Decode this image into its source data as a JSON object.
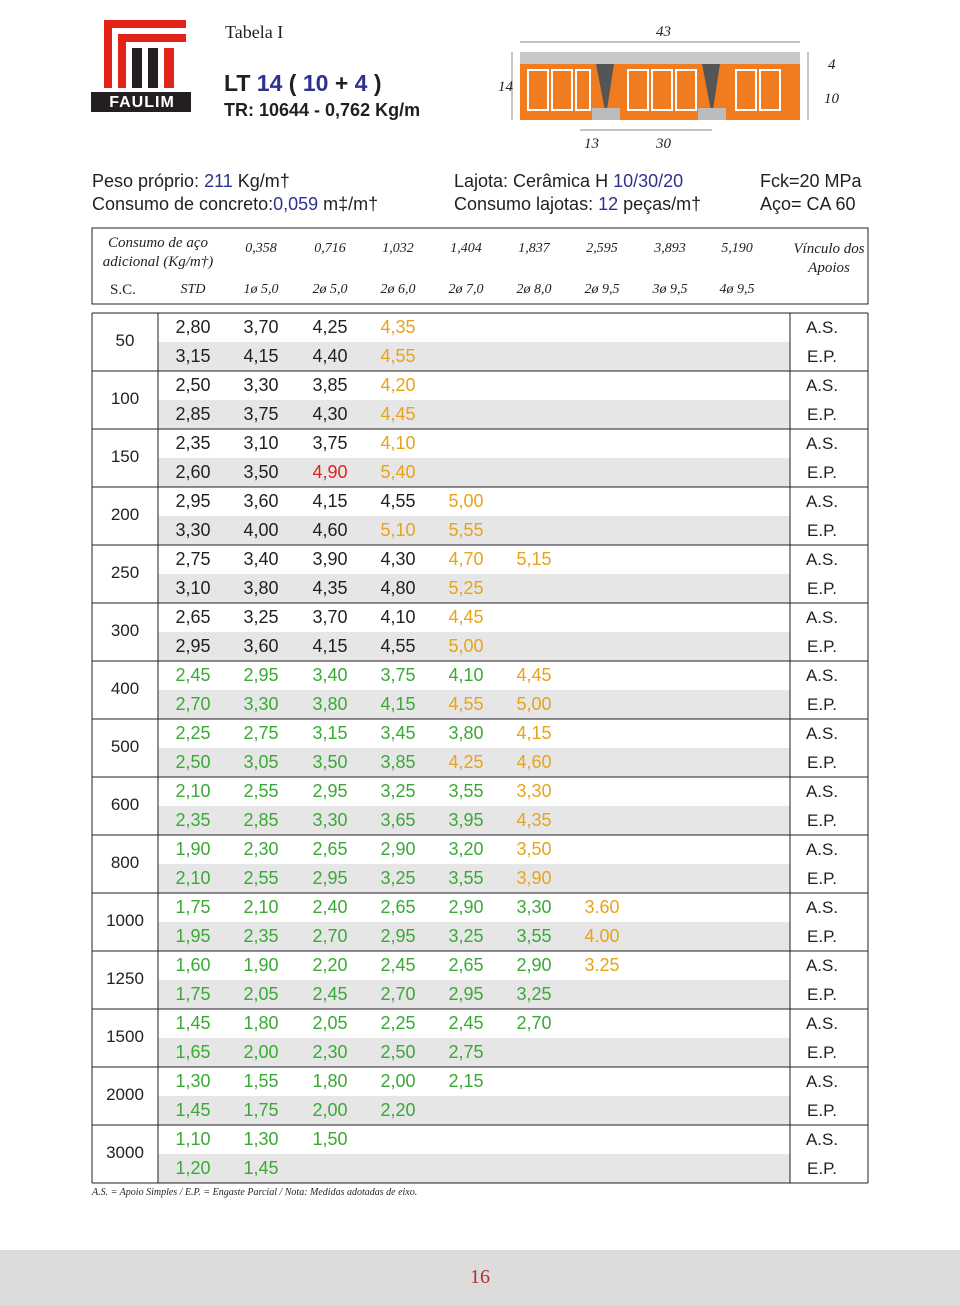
{
  "header": {
    "table_label": "Tabela I",
    "logo": "FAULIM",
    "title_parts": [
      "LT ",
      "14",
      " ( ",
      "10",
      " + ",
      "4",
      " )"
    ],
    "subtitle": "TR: 10644 - 0,762 Kg/m"
  },
  "diagram": {
    "top": "43",
    "left": "14",
    "right_top": "4",
    "right": "10",
    "bottom_left": "13",
    "bottom": "30"
  },
  "info": {
    "left": [
      [
        "Peso próprio: ",
        "211",
        " Kg/m†"
      ],
      [
        "Consumo de concreto:",
        "0,059",
        " m‡/m†"
      ]
    ],
    "middle": [
      [
        "Lajota: Cerâmica H ",
        "10/30/20"
      ],
      [
        "Consumo lajotas: ",
        "12",
        " peças/m†"
      ]
    ],
    "right": [
      [
        "Fck=20 MPa"
      ],
      [
        "Aço= CA 60"
      ]
    ]
  },
  "steel": {
    "label": "Consumo de aço adicional (Kg/m†)",
    "consumption": [
      "0,358",
      "0,716",
      "1,032",
      "1,404",
      "1,837",
      "2,595",
      "3,893",
      "5,190"
    ],
    "sc_label": "S.C.",
    "bars": [
      "STD",
      "1ø 5,0",
      "2ø 5,0",
      "2ø 6,0",
      "2ø 7,0",
      "2ø 8,0",
      "2ø 9,5",
      "3ø 9,5",
      "4ø 9,5"
    ],
    "support_label": "Vínculo dos Apoios"
  },
  "palette": {
    "k": "#231f20",
    "r": "#e2231a",
    "y": "#e8a317",
    "g": "#3aa935"
  },
  "loads": [
    "50",
    "100",
    "150",
    "200",
    "250",
    "300",
    "400",
    "500",
    "600",
    "800",
    "1000",
    "1250",
    "1500",
    "2000",
    "3000"
  ],
  "rows": [
    {
      "values": [
        "2,80",
        "3,70",
        "4,25",
        "4,35"
      ],
      "colors": "kkky",
      "support": "A.S."
    },
    {
      "values": [
        "3,15",
        "4,15",
        "4,40",
        "4,55"
      ],
      "colors": "kkky",
      "support": "E.P."
    },
    {
      "values": [
        "2,50",
        "3,30",
        "3,85",
        "4,20"
      ],
      "colors": "kkky",
      "support": "A.S."
    },
    {
      "values": [
        "2,85",
        "3,75",
        "4,30",
        "4,45"
      ],
      "colors": "kkky",
      "support": "E.P."
    },
    {
      "values": [
        "2,35",
        "3,10",
        "3,75",
        "4,10"
      ],
      "colors": "kkky",
      "support": "A.S."
    },
    {
      "values": [
        "2,60",
        "3,50",
        "4,90",
        "5,40"
      ],
      "colors": "kkry",
      "support": "E.P."
    },
    {
      "values": [
        "2,95",
        "3,60",
        "4,15",
        "4,55",
        "5,00"
      ],
      "colors": "kkkky",
      "support": "A.S."
    },
    {
      "values": [
        "3,30",
        "4,00",
        "4,60",
        "5,10",
        "5,55"
      ],
      "colors": "kkkyy",
      "support": "E.P."
    },
    {
      "values": [
        "2,75",
        "3,40",
        "3,90",
        "4,30",
        "4,70",
        "5,15"
      ],
      "colors": "kkkkyy",
      "support": "A.S."
    },
    {
      "values": [
        "3,10",
        "3,80",
        "4,35",
        "4,80",
        "5,25"
      ],
      "colors": "kkkky",
      "support": "E.P."
    },
    {
      "values": [
        "2,65",
        "3,25",
        "3,70",
        "4,10",
        "4,45"
      ],
      "colors": "kkkky",
      "support": "A.S."
    },
    {
      "values": [
        "2,95",
        "3,60",
        "4,15",
        "4,55",
        "5,00"
      ],
      "colors": "kkkky",
      "support": "E.P."
    },
    {
      "values": [
        "2,45",
        "2,95",
        "3,40",
        "3,75",
        "4,10",
        "4,45"
      ],
      "colors": "gggggy",
      "support": "A.S."
    },
    {
      "values": [
        "2,70",
        "3,30",
        "3,80",
        "4,15",
        "4,55",
        "5,00"
      ],
      "colors": "ggggyy",
      "support": "E.P."
    },
    {
      "values": [
        "2,25",
        "2,75",
        "3,15",
        "3,45",
        "3,80",
        "4,15"
      ],
      "colors": "gggggy",
      "support": "A.S."
    },
    {
      "values": [
        "2,50",
        "3,05",
        "3,50",
        "3,85",
        "4,25",
        "4,60"
      ],
      "colors": "ggggyy",
      "support": "E.P."
    },
    {
      "values": [
        "2,10",
        "2,55",
        "2,95",
        "3,25",
        "3,55",
        "3,30"
      ],
      "colors": "gggggy",
      "support": "A.S."
    },
    {
      "values": [
        "2,35",
        "2,85",
        "3,30",
        "3,65",
        "3,95",
        "4,35"
      ],
      "colors": "gggggy",
      "support": "E.P."
    },
    {
      "values": [
        "1,90",
        "2,30",
        "2,65",
        "2,90",
        "3,20",
        "3,50"
      ],
      "colors": "gggggy",
      "support": "A.S."
    },
    {
      "values": [
        "2,10",
        "2,55",
        "2,95",
        "3,25",
        "3,55",
        "3,90"
      ],
      "colors": "gggggy",
      "support": "E.P."
    },
    {
      "values": [
        "1,75",
        "2,10",
        "2,40",
        "2,65",
        "2,90",
        "3,30",
        "3.60"
      ],
      "colors": "ggggggy",
      "support": "A.S."
    },
    {
      "values": [
        "1,95",
        "2,35",
        "2,70",
        "2,95",
        "3,25",
        "3,55",
        "4.00"
      ],
      "colors": "ggggggy",
      "support": "E.P."
    },
    {
      "values": [
        "1,60",
        "1,90",
        "2,20",
        "2,45",
        "2,65",
        "2,90",
        "3.25"
      ],
      "colors": "ggggggy",
      "support": "A.S."
    },
    {
      "values": [
        "1,75",
        "2,05",
        "2,45",
        "2,70",
        "2,95",
        "3,25"
      ],
      "colors": "gggggg",
      "support": "E.P."
    },
    {
      "values": [
        "1,45",
        "1,80",
        "2,05",
        "2,25",
        "2,45",
        "2,70"
      ],
      "colors": "gggggg",
      "support": "A.S."
    },
    {
      "values": [
        "1,65",
        "2,00",
        "2,30",
        "2,50",
        "2,75"
      ],
      "colors": "ggggg",
      "support": "E.P."
    },
    {
      "values": [
        "1,30",
        "1,55",
        "1,80",
        "2,00",
        "2,15"
      ],
      "colors": "ggggg",
      "support": "A.S."
    },
    {
      "values": [
        "1,45",
        "1,75",
        "2,00",
        "2,20"
      ],
      "colors": "gggg",
      "support": "E.P."
    },
    {
      "values": [
        "1,10",
        "1,30",
        "1,50"
      ],
      "colors": "ggg",
      "support": "A.S."
    },
    {
      "values": [
        "1,20",
        "1,45"
      ],
      "colors": "gg",
      "support": "E.P."
    }
  ],
  "footnote": "A.S. = Apoio Simples / E.P. = Engaste Parcial / Nota: Medidas adotadas de eixo.",
  "page_number": "16"
}
